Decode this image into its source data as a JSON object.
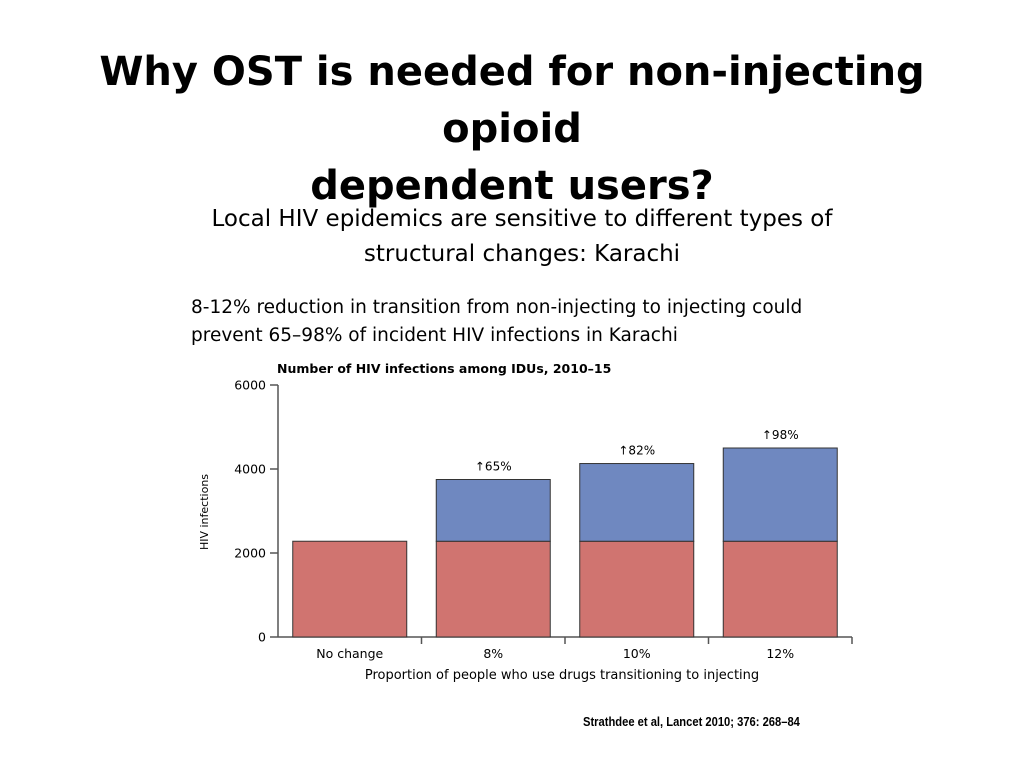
{
  "slide": {
    "title_lines": [
      "Why OST is needed for non-injecting opioid",
      "dependent users?"
    ],
    "subtitle_lines": [
      "Local HIV epidemics are sensitive to different types of",
      "structural changes:  Karachi"
    ],
    "note_lines": [
      "8-12% reduction  in transition from non-injecting to injecting could",
      "prevent 65–98% of incident HIV infections in Karachi"
    ],
    "citation": "Strathdee et al, Lancet 2010; 376: 268–84"
  },
  "chart_data": {
    "type": "bar",
    "stacked": true,
    "title": "Number of HIV infections among IDUs, 2010–15",
    "xlabel": "Proportion of people who use drugs transitioning to injecting",
    "ylabel": "HIV infections",
    "categories": [
      "No change",
      "8%",
      "10%",
      "12%"
    ],
    "series": [
      {
        "values": [
          2280,
          2280,
          2280,
          2280
        ],
        "color": "#d07470"
      },
      {
        "values": [
          0,
          1470,
          1850,
          2220
        ],
        "color": "#6f88c0"
      }
    ],
    "bar_labels": [
      "",
      "↑65%",
      "↑82%",
      "↑98%"
    ],
    "ylim": [
      0,
      6000
    ],
    "yticks": [
      0,
      2000,
      4000,
      6000
    ],
    "grid": false
  }
}
